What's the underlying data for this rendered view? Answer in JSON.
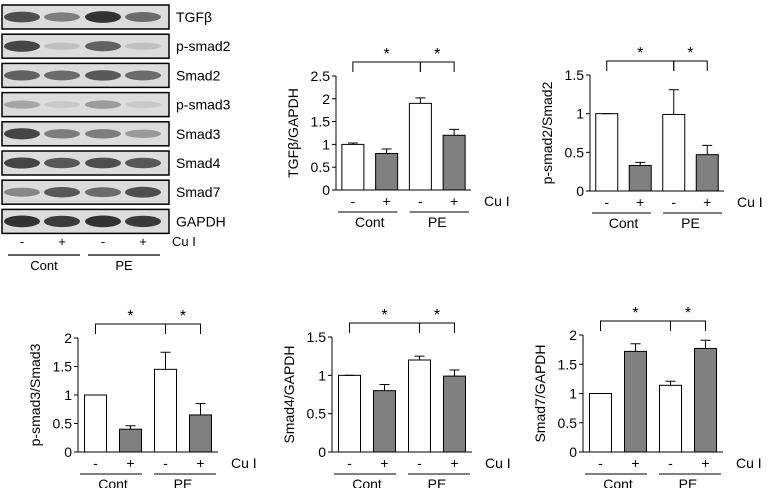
{
  "blot": {
    "proteins": [
      "TGFβ",
      "p-smad2",
      "Smad2",
      "p-smad3",
      "Smad3",
      "Smad4",
      "Smad7",
      "GAPDH"
    ],
    "lanes": [
      "-",
      "+",
      "-",
      "+"
    ],
    "treatment_label": "Cu I",
    "groups": [
      "Cont",
      "PE"
    ],
    "band_intensity": [
      [
        0.8,
        0.55,
        0.95,
        0.65
      ],
      [
        0.85,
        0.2,
        0.7,
        0.2
      ],
      [
        0.7,
        0.65,
        0.75,
        0.65
      ],
      [
        0.35,
        0.15,
        0.4,
        0.15
      ],
      [
        0.85,
        0.55,
        0.55,
        0.4
      ],
      [
        0.85,
        0.75,
        0.8,
        0.75
      ],
      [
        0.5,
        0.75,
        0.65,
        0.8
      ],
      [
        0.95,
        0.9,
        0.95,
        0.9
      ]
    ]
  },
  "chart_data": [
    {
      "type": "bar",
      "ylabel": "TGFβ/GAPDH",
      "ylim": [
        0,
        2.5
      ],
      "yticks": [
        "0",
        "0.5",
        "1",
        "1.5",
        "2",
        "2.5"
      ],
      "lane_labels": [
        "-",
        "+",
        "-",
        "+"
      ],
      "groups": [
        "Cont",
        "PE"
      ],
      "treatment_label": "Cu I",
      "values": [
        1.0,
        0.8,
        1.9,
        1.2
      ],
      "errors": [
        0.03,
        0.1,
        0.12,
        0.13
      ],
      "fills": [
        "#ffffff",
        "#808080",
        "#ffffff",
        "#808080"
      ],
      "significance": [
        "*",
        "*"
      ]
    },
    {
      "type": "bar",
      "ylabel": "p-smad2/Smad2",
      "ylim": [
        0,
        1.5
      ],
      "yticks": [
        "0",
        "0.5",
        "1",
        "1.5"
      ],
      "lane_labels": [
        "-",
        "+",
        "-",
        "+"
      ],
      "groups": [
        "Cont",
        "PE"
      ],
      "treatment_label": "Cu I",
      "values": [
        1.0,
        0.33,
        0.99,
        0.47
      ],
      "errors": [
        0.0,
        0.04,
        0.32,
        0.12
      ],
      "fills": [
        "#ffffff",
        "#808080",
        "#ffffff",
        "#808080"
      ],
      "significance": [
        "*",
        "*"
      ]
    },
    {
      "type": "bar",
      "ylabel": "p-smad3/Smad3",
      "ylim": [
        0,
        2
      ],
      "yticks": [
        "0",
        "0.5",
        "1",
        "1.5",
        "2"
      ],
      "lane_labels": [
        "-",
        "+",
        "-",
        "+"
      ],
      "groups": [
        "Cont",
        "PE"
      ],
      "treatment_label": "Cu I",
      "values": [
        1.0,
        0.4,
        1.45,
        0.65
      ],
      "errors": [
        0.0,
        0.06,
        0.3,
        0.2
      ],
      "fills": [
        "#ffffff",
        "#808080",
        "#ffffff",
        "#808080"
      ],
      "significance": [
        "*",
        "*"
      ]
    },
    {
      "type": "bar",
      "ylabel": "Smad4/GAPDH",
      "ylim": [
        0,
        1.5
      ],
      "yticks": [
        "0",
        "0.5",
        "1",
        "1.5"
      ],
      "lane_labels": [
        "-",
        "+",
        "-",
        "+"
      ],
      "groups": [
        "Cont",
        "PE"
      ],
      "treatment_label": "Cu I",
      "values": [
        1.0,
        0.8,
        1.2,
        0.99
      ],
      "errors": [
        0.0,
        0.08,
        0.05,
        0.08
      ],
      "fills": [
        "#ffffff",
        "#808080",
        "#ffffff",
        "#808080"
      ],
      "significance": [
        "*",
        "*"
      ]
    },
    {
      "type": "bar",
      "ylabel": "Smad7/GAPDH",
      "ylim": [
        0,
        2
      ],
      "yticks": [
        "0",
        "0.5",
        "1",
        "1.5",
        "2"
      ],
      "lane_labels": [
        "-",
        "+",
        "-",
        "+"
      ],
      "groups": [
        "Cont",
        "PE"
      ],
      "treatment_label": "Cu I",
      "values": [
        1.0,
        1.72,
        1.14,
        1.77
      ],
      "errors": [
        0.0,
        0.13,
        0.07,
        0.14
      ],
      "fills": [
        "#ffffff",
        "#808080",
        "#ffffff",
        "#808080"
      ],
      "significance": [
        "*",
        "*"
      ]
    }
  ]
}
